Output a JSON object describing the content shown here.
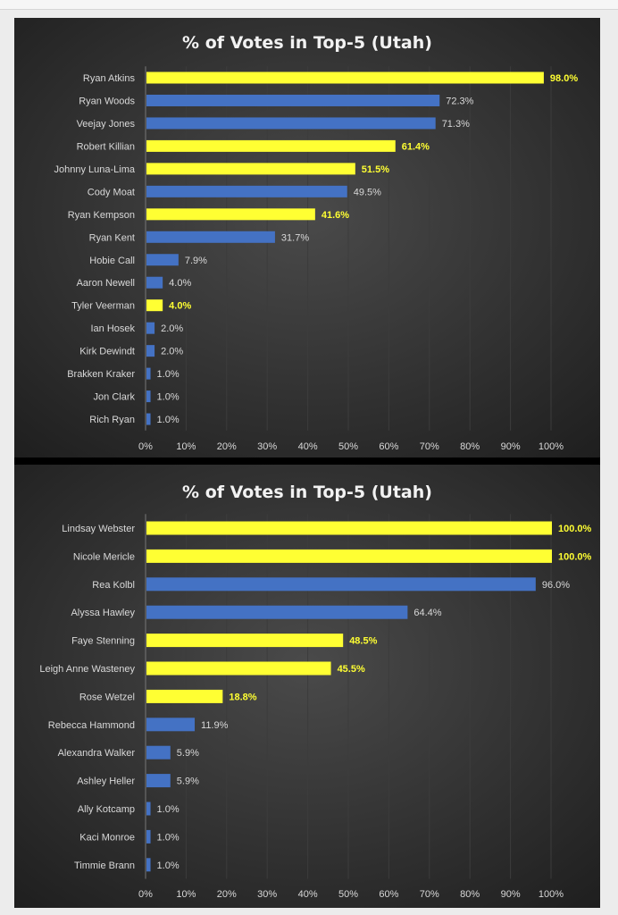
{
  "colors": {
    "highlight": "#ffff33",
    "normal": "#4472c4",
    "background": "#2e2e2e"
  },
  "chart_data": [
    {
      "type": "bar",
      "orientation": "horizontal",
      "title": "% of Votes in Top-5 (Utah)",
      "xlim": [
        0,
        100
      ],
      "xticks": [
        "0%",
        "10%",
        "20%",
        "30%",
        "40%",
        "50%",
        "60%",
        "70%",
        "80%",
        "90%",
        "100%"
      ],
      "grid": true,
      "categories": [
        "Ryan Atkins",
        "Ryan Woods",
        "Veejay Jones",
        "Robert Killian",
        "Johnny Luna-Lima",
        "Cody Moat",
        "Ryan Kempson",
        "Ryan Kent",
        "Hobie Call",
        "Aaron Newell",
        "Tyler Veerman",
        "Ian Hosek",
        "Kirk Dewindt",
        "Brakken Kraker",
        "Jon Clark",
        "Rich Ryan"
      ],
      "values": [
        98.0,
        72.3,
        71.3,
        61.4,
        51.5,
        49.5,
        41.6,
        31.7,
        7.9,
        4.0,
        4.0,
        2.0,
        2.0,
        1.0,
        1.0,
        1.0
      ],
      "labels": [
        "98.0%",
        "72.3%",
        "71.3%",
        "61.4%",
        "51.5%",
        "49.5%",
        "41.6%",
        "31.7%",
        "7.9%",
        "4.0%",
        "4.0%",
        "2.0%",
        "2.0%",
        "1.0%",
        "1.0%",
        "1.0%"
      ],
      "highlighted": [
        true,
        false,
        false,
        true,
        true,
        false,
        true,
        false,
        false,
        false,
        true,
        false,
        false,
        false,
        false,
        false
      ]
    },
    {
      "type": "bar",
      "orientation": "horizontal",
      "title": "% of Votes in Top-5 (Utah)",
      "xlim": [
        0,
        100
      ],
      "xticks": [
        "0%",
        "10%",
        "20%",
        "30%",
        "40%",
        "50%",
        "60%",
        "70%",
        "80%",
        "90%",
        "100%"
      ],
      "grid": true,
      "categories": [
        "Lindsay Webster",
        "Nicole Mericle",
        "Rea Kolbl",
        "Alyssa Hawley",
        "Faye Stenning",
        "Leigh Anne Wasteney",
        "Rose Wetzel",
        "Rebecca Hammond",
        "Alexandra Walker",
        "Ashley Heller",
        "Ally Kotcamp",
        "Kaci Monroe",
        "Timmie Brann"
      ],
      "values": [
        100.0,
        100.0,
        96.0,
        64.4,
        48.5,
        45.5,
        18.8,
        11.9,
        5.9,
        5.9,
        1.0,
        1.0,
        1.0
      ],
      "labels": [
        "100.0%",
        "100.0%",
        "96.0%",
        "64.4%",
        "48.5%",
        "45.5%",
        "18.8%",
        "11.9%",
        "5.9%",
        "5.9%",
        "1.0%",
        "1.0%",
        "1.0%"
      ],
      "highlighted": [
        true,
        true,
        false,
        false,
        true,
        true,
        true,
        false,
        false,
        false,
        false,
        false,
        false
      ]
    }
  ]
}
